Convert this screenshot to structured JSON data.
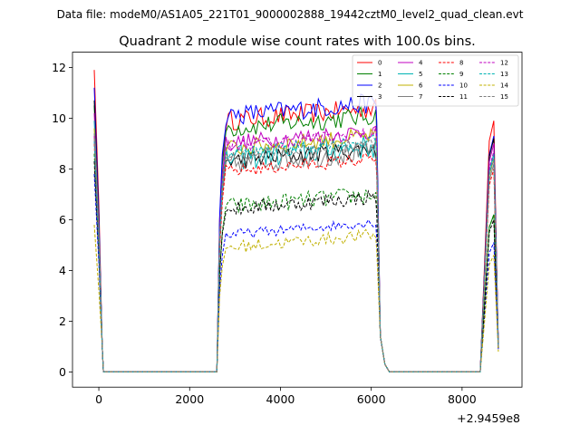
{
  "chart_data": {
    "type": "line",
    "suptitle": "Data file: modeM0/AS1A05_221T01_9000002888_19442cztM0_level2_quad_clean.evt",
    "title": "Quadrant 2 module wise count rates with 100.0s bins.",
    "xlabel": "",
    "ylabel": "",
    "x_offset_label": "+2.9459e8",
    "xlim": [
      -580,
      9320
    ],
    "ylim": [
      -0.6,
      12.6
    ],
    "xticks": [
      0,
      2000,
      4000,
      6000,
      8000
    ],
    "xtick_labels": [
      "0",
      "2000",
      "4000",
      "6000",
      "8000"
    ],
    "yticks": [
      0,
      2,
      4,
      6,
      8,
      10,
      12
    ],
    "ytick_labels": [
      "0",
      "2",
      "4",
      "6",
      "8",
      "10",
      "12"
    ],
    "grid": false,
    "legend": "top-right",
    "segments": [
      {
        "x_start": -100,
        "x_end": 100,
        "shape": "drop"
      },
      {
        "x_start": 100,
        "x_end": 2600,
        "shape": "zero"
      },
      {
        "x_start": 2600,
        "x_end": 2800,
        "shape": "rise"
      },
      {
        "x_start": 2800,
        "x_end": 6100,
        "shape": "plateau"
      },
      {
        "x_start": 6100,
        "x_end": 6400,
        "shape": "fall"
      },
      {
        "x_start": 6400,
        "x_end": 8400,
        "shape": "zero"
      },
      {
        "x_start": 8400,
        "x_end": 8800,
        "shape": "tail"
      }
    ],
    "series": [
      {
        "name": "0",
        "color": "#ff0000",
        "dash": "solid",
        "start": 11.9,
        "plateau": 9.9,
        "end": 9.9,
        "final": 1.0,
        "noise": 0.4
      },
      {
        "name": "1",
        "color": "#008000",
        "dash": "solid",
        "start": 10.5,
        "plateau": 9.6,
        "end": 6.2,
        "final": 1.2,
        "noise": 0.4
      },
      {
        "name": "2",
        "color": "#0000ff",
        "dash": "solid",
        "start": 11.2,
        "plateau": 10.1,
        "end": 9.3,
        "final": 1.1,
        "noise": 0.4
      },
      {
        "name": "3",
        "color": "#000000",
        "dash": "solid",
        "start": 10.7,
        "plateau": 8.3,
        "end": 9.2,
        "final": 1.0,
        "noise": 0.35
      },
      {
        "name": "4",
        "color": "#c000c0",
        "dash": "solid",
        "start": 10.2,
        "plateau": 9.0,
        "end": 9.0,
        "final": 1.1,
        "noise": 0.35
      },
      {
        "name": "5",
        "color": "#00b4b4",
        "dash": "solid",
        "start": 9.9,
        "plateau": 8.4,
        "end": 8.6,
        "final": 1.0,
        "noise": 0.5
      },
      {
        "name": "6",
        "color": "#c0b000",
        "dash": "solid",
        "start": 9.6,
        "plateau": 8.8,
        "end": 8.4,
        "final": 1.0,
        "noise": 0.35
      },
      {
        "name": "7",
        "color": "#808080",
        "dash": "solid",
        "start": 9.4,
        "plateau": 8.2,
        "end": 8.2,
        "final": 1.0,
        "noise": 0.45
      },
      {
        "name": "8",
        "color": "#ff0000",
        "dash": "dashed",
        "start": 9.0,
        "plateau": 7.9,
        "end": 8.0,
        "final": 1.0,
        "noise": 0.25
      },
      {
        "name": "9",
        "color": "#008000",
        "dash": "dashed",
        "start": 8.6,
        "plateau": 6.5,
        "end": 6.2,
        "final": 1.0,
        "noise": 0.35
      },
      {
        "name": "10",
        "color": "#0000ff",
        "dash": "dashed",
        "start": 7.8,
        "plateau": 5.4,
        "end": 5.1,
        "final": 0.9,
        "noise": 0.2
      },
      {
        "name": "11",
        "color": "#000000",
        "dash": "dashed",
        "start": 8.3,
        "plateau": 6.4,
        "end": 6.0,
        "final": 0.9,
        "noise": 0.3
      },
      {
        "name": "12",
        "color": "#c000c0",
        "dash": "dashed",
        "start": 9.3,
        "plateau": 8.9,
        "end": 8.7,
        "final": 1.0,
        "noise": 0.25
      },
      {
        "name": "13",
        "color": "#00b4b4",
        "dash": "dashed",
        "start": 9.1,
        "plateau": 8.6,
        "end": 8.5,
        "final": 1.0,
        "noise": 0.25
      },
      {
        "name": "14",
        "color": "#c0b000",
        "dash": "dashed",
        "start": 5.8,
        "plateau": 4.9,
        "end": 4.6,
        "final": 0.8,
        "noise": 0.25
      },
      {
        "name": "15",
        "color": "#808080",
        "dash": "dashed",
        "start": 9.2,
        "plateau": 8.5,
        "end": 8.4,
        "final": 1.0,
        "noise": 0.25
      }
    ]
  }
}
